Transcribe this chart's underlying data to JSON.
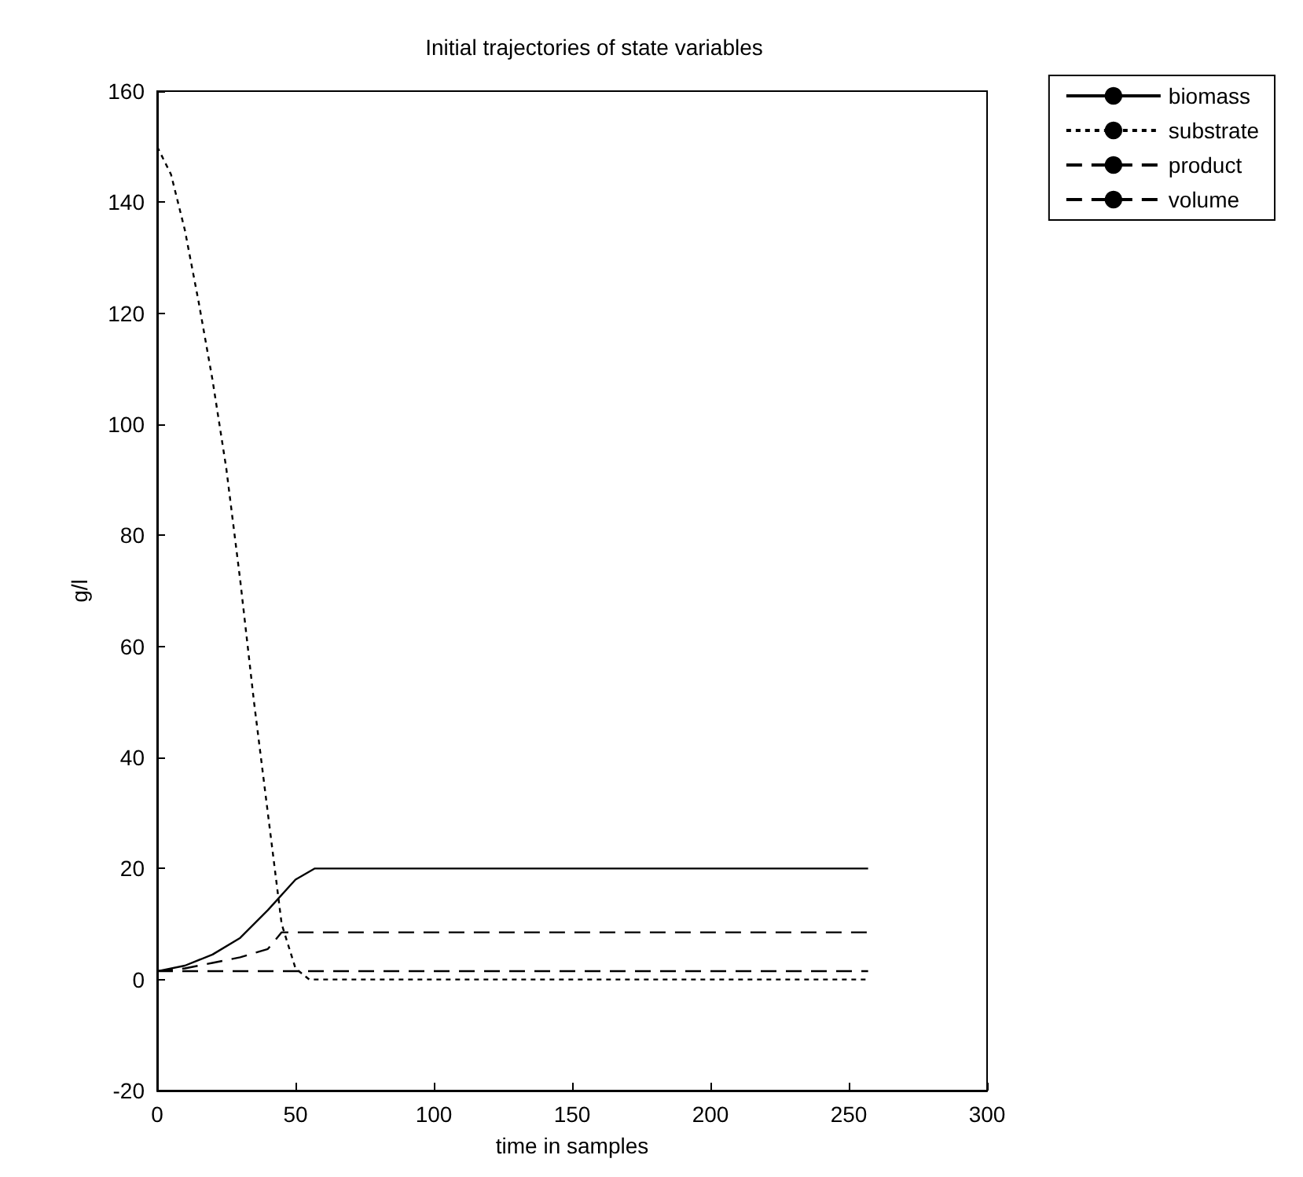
{
  "chart_data": {
    "type": "line",
    "title": "Initial trajectories of state variables",
    "xlabel": "time in samples",
    "ylabel": "g/l",
    "xlim": [
      0,
      300
    ],
    "xticks": [
      0,
      50,
      100,
      150,
      200,
      250,
      300
    ],
    "ylim": [
      -20,
      160
    ],
    "yticks": [
      -20,
      0,
      20,
      40,
      60,
      80,
      100,
      120,
      140,
      160
    ],
    "grid": false,
    "legend": "top right",
    "marker": "none",
    "series": [
      {
        "name": "biomass",
        "color": "#000000",
        "line_style": "solid",
        "x": [
          0,
          10,
          20,
          30,
          40,
          50,
          57,
          100,
          150,
          200,
          257
        ],
        "values": [
          1.5,
          2.5,
          4.5,
          7.5,
          12.5,
          18,
          20,
          20,
          20,
          20,
          20
        ]
      },
      {
        "name": "substrate",
        "color": "#000000",
        "line_style": "dotted",
        "x": [
          0,
          5,
          10,
          15,
          20,
          25,
          30,
          35,
          40,
          45,
          50,
          55,
          100,
          150,
          200,
          257
        ],
        "values": [
          150,
          145,
          135,
          122,
          108,
          92,
          72,
          50,
          30,
          10,
          2,
          0,
          0,
          0,
          0,
          0
        ]
      },
      {
        "name": "product",
        "color": "#000000",
        "line_style": "dashed",
        "x": [
          0,
          10,
          20,
          30,
          40,
          45,
          100,
          150,
          200,
          257
        ],
        "values": [
          1.5,
          2,
          3,
          4,
          5.5,
          8.5,
          8.5,
          8.5,
          8.5,
          8.5
        ]
      },
      {
        "name": "volume",
        "color": "#000000",
        "line_style": "dashed",
        "x": [
          0,
          50,
          100,
          150,
          200,
          257
        ],
        "values": [
          1.5,
          1.5,
          1.5,
          1.5,
          1.5,
          1.5
        ]
      }
    ]
  }
}
